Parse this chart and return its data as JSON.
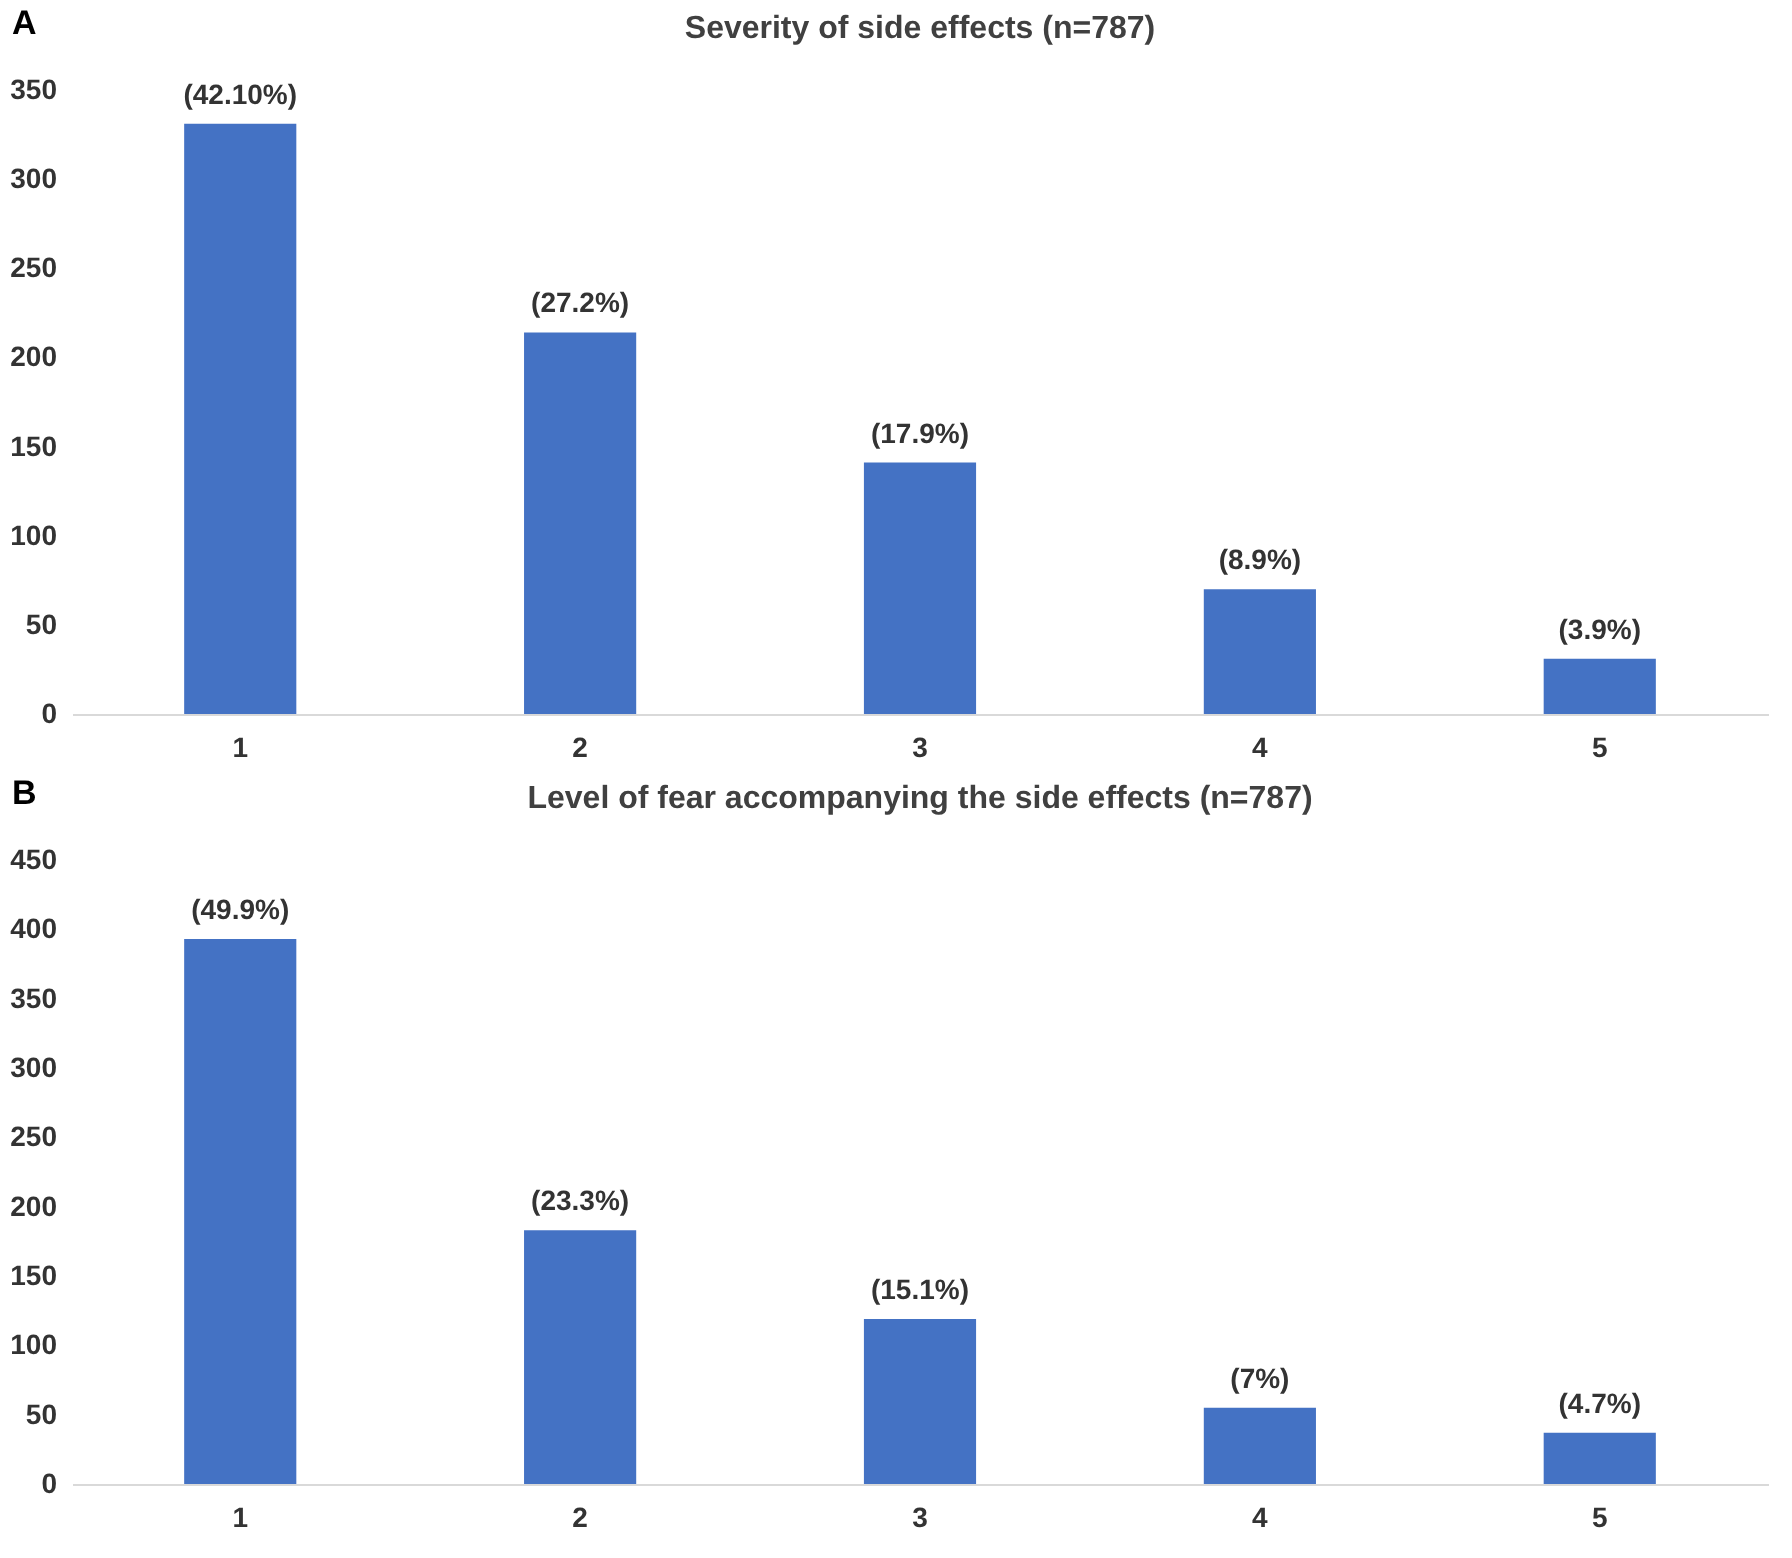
{
  "chart_data": [
    {
      "type": "bar",
      "title": "Severity of side effects (n=787)",
      "categories": [
        "1",
        "2",
        "3",
        "4",
        "5"
      ],
      "values": [
        331,
        214,
        141,
        70,
        31
      ],
      "color": "#4472c4",
      "ylim": [
        0,
        350
      ],
      "yticks": [
        0,
        50,
        100,
        150,
        200,
        250,
        300,
        350
      ],
      "grid": false,
      "annotations": [
        "A",
        {
          "text": "(42.10%)",
          "x": "1",
          "y": 331
        },
        {
          "text": "(27.2%)",
          "x": "2",
          "y": 214
        },
        {
          "text": "(17.9%)",
          "x": "3",
          "y": 141
        },
        {
          "text": "(8.9%)",
          "x": "4",
          "y": 70
        },
        {
          "text": "(3.9%)",
          "x": "5",
          "y": 31
        }
      ]
    },
    {
      "type": "bar",
      "title": "Level of fear accompanying the side effects (n=787)",
      "categories": [
        "1",
        "2",
        "3",
        "4",
        "5"
      ],
      "values": [
        393,
        183,
        119,
        55,
        37
      ],
      "color": "#4472c4",
      "ylim": [
        0,
        450
      ],
      "yticks": [
        0,
        50,
        100,
        150,
        200,
        250,
        300,
        350,
        400,
        450
      ],
      "grid": false,
      "annotations": [
        "B",
        {
          "text": "(49.9%)",
          "x": "1",
          "y": 393
        },
        {
          "text": "(23.3%)",
          "x": "2",
          "y": 183
        },
        {
          "text": "(15.1%)",
          "x": "3",
          "y": 119
        },
        {
          "text": "(7%)",
          "x": "4",
          "y": 55
        },
        {
          "text": "(4.7%)",
          "x": "5",
          "y": 37
        }
      ]
    }
  ]
}
